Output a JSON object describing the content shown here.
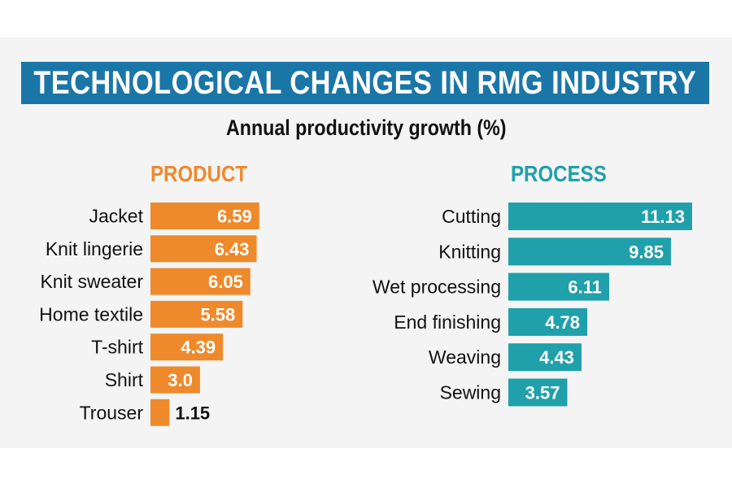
{
  "title": "TECHNOLOGICAL CHANGES IN RMG INDUSTRY",
  "subtitle": "Annual productivity growth (%)",
  "colors": {
    "banner": "#1a76a6",
    "product": "#ee8a2c",
    "process": "#20a0aa",
    "panel": "#f4f4f4"
  },
  "chart_data": [
    {
      "type": "bar",
      "orientation": "horizontal",
      "title": "PRODUCT",
      "categories": [
        "Jacket",
        "Knit lingerie",
        "Knit sweater",
        "Home textile",
        "T-shirt",
        "Shirt",
        "Trouser"
      ],
      "values": [
        6.59,
        6.43,
        6.05,
        5.58,
        4.39,
        3.0,
        1.15
      ],
      "labels": [
        "6.59",
        "6.43",
        "6.05",
        "5.58",
        "4.39",
        "3.0",
        "1.15"
      ],
      "xlim": [
        0,
        11.13
      ],
      "grid": false,
      "unit": "%"
    },
    {
      "type": "bar",
      "orientation": "horizontal",
      "title": "PROCESS",
      "categories": [
        "Cutting",
        "Knitting",
        "Wet processing",
        "End finishing",
        "Weaving",
        "Sewing"
      ],
      "values": [
        11.13,
        9.85,
        6.11,
        4.78,
        4.43,
        3.57
      ],
      "labels": [
        "11.13",
        "9.85",
        "6.11",
        "4.78",
        "4.43",
        "3.57"
      ],
      "xlim": [
        0,
        11.13
      ],
      "grid": false,
      "unit": "%"
    }
  ]
}
